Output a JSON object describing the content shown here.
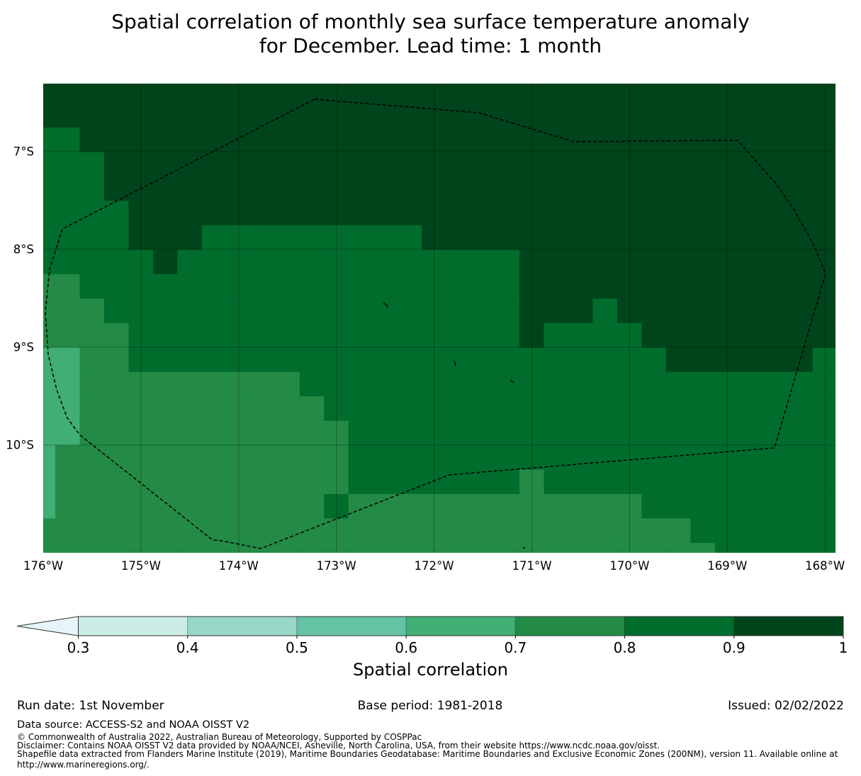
{
  "title": {
    "line1": "Spatial correlation of monthly sea surface temperature anomaly",
    "line2": "for December. Lead time: 1 month"
  },
  "map": {
    "lon_labels": [
      {
        "value": 176,
        "text": "176°W"
      },
      {
        "value": 175,
        "text": "175°W"
      },
      {
        "value": 174,
        "text": "174°W"
      },
      {
        "value": 173,
        "text": "173°W"
      },
      {
        "value": 172,
        "text": "172°W"
      },
      {
        "value": 171,
        "text": "171°W"
      },
      {
        "value": 170,
        "text": "170°W"
      },
      {
        "value": 169,
        "text": "169°W"
      },
      {
        "value": 168,
        "text": "168°W"
      }
    ],
    "lat_labels": [
      {
        "value": 7,
        "text": "7°S"
      },
      {
        "value": 8,
        "text": "8°S"
      },
      {
        "value": 9,
        "text": "9°S"
      },
      {
        "value": 10,
        "text": "10°S"
      }
    ],
    "grid_resolution_deg": 0.25,
    "grid_rows_runs": [
      [
        [
          7,
          33
        ]
      ],
      [
        [
          7,
          33
        ]
      ],
      [
        [
          6,
          2
        ],
        [
          7,
          31
        ]
      ],
      [
        [
          6,
          3
        ],
        [
          7,
          30
        ]
      ],
      [
        [
          6,
          3
        ],
        [
          7,
          30
        ]
      ],
      [
        [
          6,
          4
        ],
        [
          7,
          29
        ]
      ],
      [
        [
          6,
          4
        ],
        [
          7,
          3
        ],
        [
          6,
          9
        ],
        [
          7,
          17
        ]
      ],
      [
        [
          6,
          5
        ],
        [
          7,
          1
        ],
        [
          6,
          14
        ],
        [
          7,
          13
        ]
      ],
      [
        [
          5,
          2
        ],
        [
          6,
          18
        ],
        [
          7,
          13
        ]
      ],
      [
        [
          5,
          3
        ],
        [
          6,
          17
        ],
        [
          7,
          3
        ],
        [
          6,
          1
        ],
        [
          7,
          9
        ]
      ],
      [
        [
          5,
          4
        ],
        [
          6,
          16
        ],
        [
          7,
          1
        ],
        [
          6,
          4
        ],
        [
          7,
          8
        ]
      ],
      [
        [
          4,
          2
        ],
        [
          5,
          2
        ],
        [
          6,
          22
        ],
        [
          7,
          6
        ],
        [
          6,
          1
        ]
      ],
      [
        [
          4,
          2
        ],
        [
          5,
          9
        ],
        [
          6,
          22
        ]
      ],
      [
        [
          4,
          2
        ],
        [
          5,
          10
        ],
        [
          6,
          21
        ]
      ],
      [
        [
          4,
          2
        ],
        [
          5,
          11
        ],
        [
          6,
          20
        ]
      ],
      [
        [
          4,
          1
        ],
        [
          5,
          12
        ],
        [
          6,
          20
        ]
      ],
      [
        [
          4,
          1
        ],
        [
          5,
          12
        ],
        [
          6,
          7
        ],
        [
          5,
          1
        ],
        [
          6,
          12
        ]
      ],
      [
        [
          4,
          1
        ],
        [
          5,
          11
        ],
        [
          6,
          1
        ],
        [
          5,
          12
        ],
        [
          6,
          8
        ]
      ],
      [
        [
          5,
          27
        ],
        [
          6,
          6
        ]
      ],
      [
        [
          5,
          28
        ],
        [
          6,
          5
        ]
      ]
    ]
  },
  "colorbar": {
    "label": "Spatial correlation",
    "extend_color": "#e5f5f9",
    "classes": [
      {
        "min": 0.3,
        "max": 0.4,
        "color": "#ccece6"
      },
      {
        "min": 0.4,
        "max": 0.5,
        "color": "#99d8c9"
      },
      {
        "min": 0.5,
        "max": 0.6,
        "color": "#66c2a4"
      },
      {
        "min": 0.6,
        "max": 0.7,
        "color": "#41ae76"
      },
      {
        "min": 0.7,
        "max": 0.8,
        "color": "#238b45"
      },
      {
        "min": 0.8,
        "max": 0.9,
        "color": "#006d2c"
      },
      {
        "min": 0.9,
        "max": 1.0,
        "color": "#00441b"
      }
    ],
    "ticks": [
      "0.3",
      "0.4",
      "0.5",
      "0.6",
      "0.7",
      "0.8",
      "0.9",
      "1"
    ]
  },
  "footer": {
    "run_date": "Run date: 1st November",
    "base_period": "Base period: 1981-2018",
    "issued": "Issued: 02/02/2022",
    "data_source": "Data source: ACCESS-S2 and NOAA OISST V2",
    "copyright": "© Commonwealth of Australia 2022, Australian Bureau of Meteorology, Supported by COSPPac",
    "disclaimer": "Disclaimer: Contains NOAA OISST V2 data provided by NOAA/NCEI, Asheville, North Carolina, USA, from their website https://www.ncdc.noaa.gov/oisst.",
    "shapefile_line1": "Shapefile data extracted from Flanders Marine Institute (2019), Maritime Boundaries Geodatabase: Maritime Boundaries and Exclusive Economic Zones (200NM), version 11. Available online at",
    "shapefile_line2": "http://www.marineregions.org/."
  }
}
